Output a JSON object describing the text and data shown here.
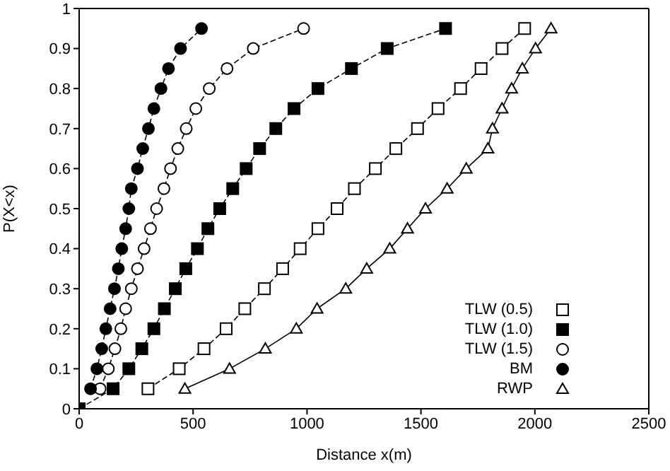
{
  "chart_data": {
    "type": "line",
    "xlabel": "Distance x(m)",
    "ylabel": "P(X<x)",
    "xlim": [
      0,
      2500
    ],
    "xticks": [
      0,
      500,
      1000,
      1500,
      2000,
      2500
    ],
    "ylim": [
      0,
      1
    ],
    "yticks": [
      0,
      0.1,
      0.2,
      0.3,
      0.4,
      0.5,
      0.6,
      0.7,
      0.8,
      0.9,
      1
    ],
    "legend": "bottom right",
    "grid": false,
    "series": [
      {
        "name": "TLW (0.5)",
        "color": "#000000",
        "colors": [
          "#ffffff",
          "#ffffff",
          "#ffffff",
          "#ffffff",
          "#ffffff",
          "#ffffff",
          "#ffffff",
          "#ffffff",
          "#ffffff",
          "#ffffff",
          "#ffffff",
          "#ffffff",
          "#ffffff",
          "#ffffff",
          "#ffffff",
          "#ffffff",
          "#ffffff",
          "#ffffff",
          "#ffffff"
        ],
        "marker": "square",
        "line_style": "dashed",
        "x": [
          302,
          439,
          548,
          645,
          727,
          813,
          893,
          970,
          1048,
          1132,
          1208,
          1300,
          1390,
          1485,
          1575,
          1674,
          1764,
          1856,
          1955
        ],
        "values": [
          0.05,
          0.1,
          0.15,
          0.2,
          0.25,
          0.3,
          0.35,
          0.4,
          0.45,
          0.5,
          0.55,
          0.6,
          0.65,
          0.7,
          0.75,
          0.8,
          0.85,
          0.9,
          0.95
        ]
      },
      {
        "name": "TLW (1.0)",
        "color": "#000000",
        "colors": [
          "#000000",
          "#000000",
          "#000000",
          "#000000",
          "#000000",
          "#000000",
          "#000000",
          "#000000",
          "#000000",
          "#000000",
          "#000000",
          "#000000",
          "#000000",
          "#000000",
          "#000000",
          "#000000",
          "#000000",
          "#000000",
          "#000000",
          "#000000"
        ],
        "marker": "square",
        "line_style": "dashed",
        "x": [
          0,
          149,
          218,
          275,
          328,
          374,
          422,
          468,
          519,
          565,
          617,
          674,
          733,
          792,
          863,
          943,
          1048,
          1195,
          1352,
          1608
        ],
        "values": [
          0,
          0.05,
          0.1,
          0.15,
          0.2,
          0.25,
          0.3,
          0.35,
          0.4,
          0.45,
          0.5,
          0.55,
          0.6,
          0.65,
          0.7,
          0.75,
          0.8,
          0.85,
          0.9,
          0.95
        ]
      },
      {
        "name": "TLW (1.5)",
        "color": "#000000",
        "colors": [
          "#ffffff",
          "#ffffff",
          "#ffffff",
          "#ffffff",
          "#ffffff",
          "#ffffff",
          "#ffffff",
          "#ffffff",
          "#ffffff",
          "#ffffff",
          "#ffffff",
          "#ffffff",
          "#ffffff",
          "#ffffff",
          "#ffffff",
          "#ffffff",
          "#ffffff",
          "#ffffff",
          "#ffffff"
        ],
        "marker": "circle",
        "line_style": "dashed",
        "x": [
          92,
          128,
          157,
          183,
          204,
          229,
          256,
          285,
          313,
          340,
          372,
          401,
          433,
          470,
          512,
          571,
          649,
          764,
          985
        ],
        "values": [
          0.05,
          0.1,
          0.15,
          0.2,
          0.25,
          0.3,
          0.35,
          0.4,
          0.45,
          0.5,
          0.55,
          0.6,
          0.65,
          0.7,
          0.75,
          0.8,
          0.85,
          0.9,
          0.95
        ]
      },
      {
        "name": "BM",
        "color": "#000000",
        "colors": [
          "#000000",
          "#000000",
          "#000000",
          "#000000",
          "#000000",
          "#000000",
          "#000000",
          "#000000",
          "#000000",
          "#000000",
          "#000000",
          "#000000",
          "#000000",
          "#000000",
          "#000000",
          "#000000",
          "#000000",
          "#000000",
          "#000000"
        ],
        "marker": "circle",
        "line_style": "dashed",
        "x": [
          50,
          78,
          99,
          117,
          136,
          155,
          172,
          187,
          204,
          218,
          229,
          256,
          279,
          304,
          328,
          359,
          392,
          445,
          537
        ],
        "values": [
          0.05,
          0.1,
          0.15,
          0.2,
          0.25,
          0.3,
          0.35,
          0.4,
          0.45,
          0.5,
          0.55,
          0.6,
          0.65,
          0.7,
          0.75,
          0.8,
          0.85,
          0.9,
          0.95
        ]
      },
      {
        "name": "RWP",
        "color": "#000000",
        "colors": [
          "#ffffff",
          "#ffffff",
          "#ffffff",
          "#ffffff",
          "#ffffff",
          "#ffffff",
          "#ffffff",
          "#ffffff",
          "#ffffff",
          "#ffffff",
          "#ffffff",
          "#ffffff",
          "#ffffff",
          "#ffffff",
          "#ffffff",
          "#ffffff",
          "#ffffff",
          "#ffffff",
          "#ffffff"
        ],
        "marker": "triangle",
        "line_style": "solid",
        "x": [
          464,
          660,
          817,
          953,
          1044,
          1170,
          1262,
          1363,
          1441,
          1520,
          1615,
          1699,
          1794,
          1814,
          1856,
          1898,
          1945,
          2003,
          2071
        ],
        "values": [
          0.05,
          0.1,
          0.15,
          0.2,
          0.25,
          0.3,
          0.35,
          0.4,
          0.45,
          0.5,
          0.55,
          0.6,
          0.65,
          0.7,
          0.75,
          0.8,
          0.85,
          0.9,
          0.95
        ]
      }
    ]
  }
}
